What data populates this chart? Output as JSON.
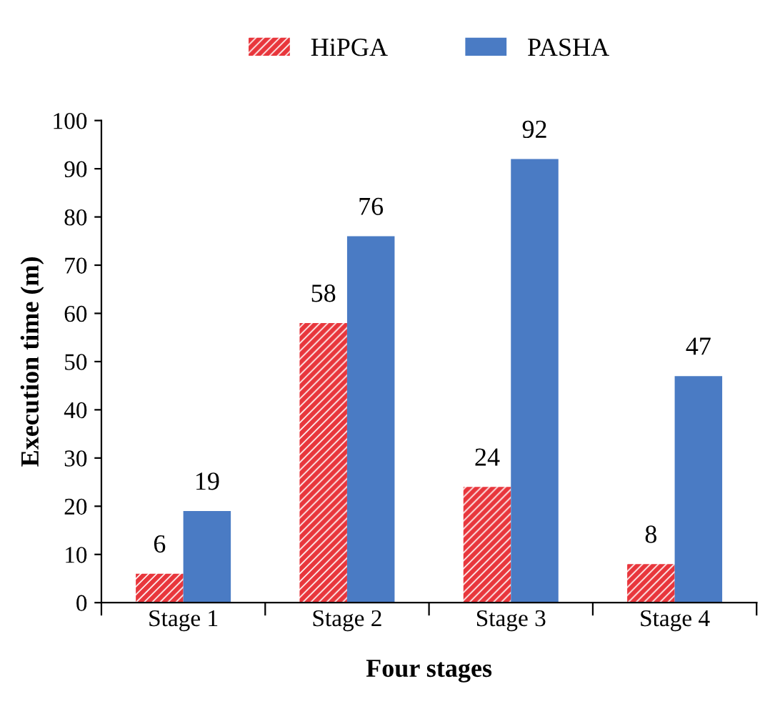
{
  "chart_data": {
    "type": "bar",
    "xlabel": "Four stages",
    "ylabel": "Execution time (m)",
    "categories": [
      "Stage 1",
      "Stage 2",
      "Stage 3",
      "Stage 4"
    ],
    "series": [
      {
        "name": "HiPGA",
        "color": "#e8363c",
        "values": [
          6,
          58,
          24,
          8
        ]
      },
      {
        "name": "PASHA",
        "color": "#4a7bc4",
        "values": [
          19,
          76,
          92,
          47
        ]
      }
    ],
    "ylim": [
      0,
      100
    ],
    "yticks": [
      0,
      10,
      20,
      30,
      40,
      50,
      60,
      70,
      80,
      90,
      100
    ],
    "grid": false,
    "legend": "top",
    "data_labels": true
  }
}
